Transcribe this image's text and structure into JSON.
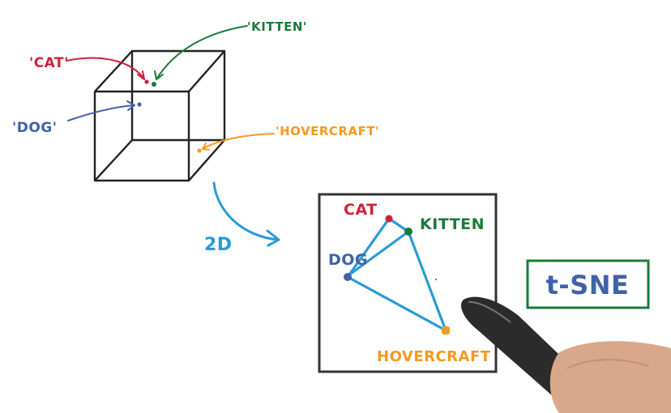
{
  "labels3d": {
    "cat": "'CAT'",
    "kitten": "'KITTEN'",
    "dog": "'DOG'",
    "hovercraft": "'HOVERCRAFT'"
  },
  "transition": "2D",
  "labels2d": {
    "cat": "CAT",
    "kitten": "KITTEN",
    "dog": "DOG",
    "hovercraft": "HOVERCRAFT"
  },
  "method": "t-SNE",
  "colors": {
    "cat": "#d0213a",
    "kitten": "#1b7a3a",
    "dog": "#3f63a8",
    "hovercraft": "#f39a1f",
    "arrow": "#2a9ad6",
    "ink": "#222222"
  },
  "icons": [
    "pen-icon"
  ]
}
